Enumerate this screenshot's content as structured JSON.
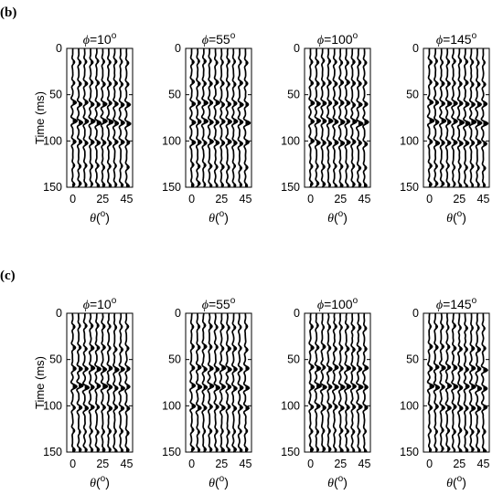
{
  "figure": {
    "panels": [
      {
        "label": "(b)",
        "seed": 11
      },
      {
        "label": "(c)",
        "seed": 29
      }
    ],
    "subplot_titles": [
      {
        "prefix": "ϕ",
        "value": "=10",
        "unit": "o"
      },
      {
        "prefix": "ϕ",
        "value": "=55",
        "unit": "o"
      },
      {
        "prefix": "ϕ",
        "value": "=100",
        "unit": "o"
      },
      {
        "prefix": "ϕ",
        "value": "=145",
        "unit": "o"
      }
    ],
    "ylabel": "Time (ms)",
    "xlabel": {
      "symbol": "θ",
      "open": "(",
      "unit": "o",
      "close": ")"
    }
  },
  "chart_data": {
    "type": "wiggle",
    "x_axis": {
      "quantity": "θ (degrees)",
      "ticks": [
        0,
        25,
        45
      ],
      "tick_labels": [
        "0",
        "25",
        "45"
      ],
      "range": [
        -5,
        50
      ],
      "traces_at": [
        0,
        5,
        10,
        15,
        20,
        25,
        30,
        35,
        40,
        45
      ]
    },
    "y_axis": {
      "label": "Time (ms)",
      "ticks": [
        0,
        50,
        100,
        150
      ],
      "range": [
        0,
        150
      ],
      "reversed": true
    },
    "reflection_events_ms": [
      14,
      37,
      59,
      79,
      101,
      127,
      147
    ],
    "fill": "positive lobes filled black",
    "panels": [
      "(b)",
      "(c)"
    ],
    "subplots_phi_deg": [
      10,
      55,
      100,
      145
    ]
  }
}
